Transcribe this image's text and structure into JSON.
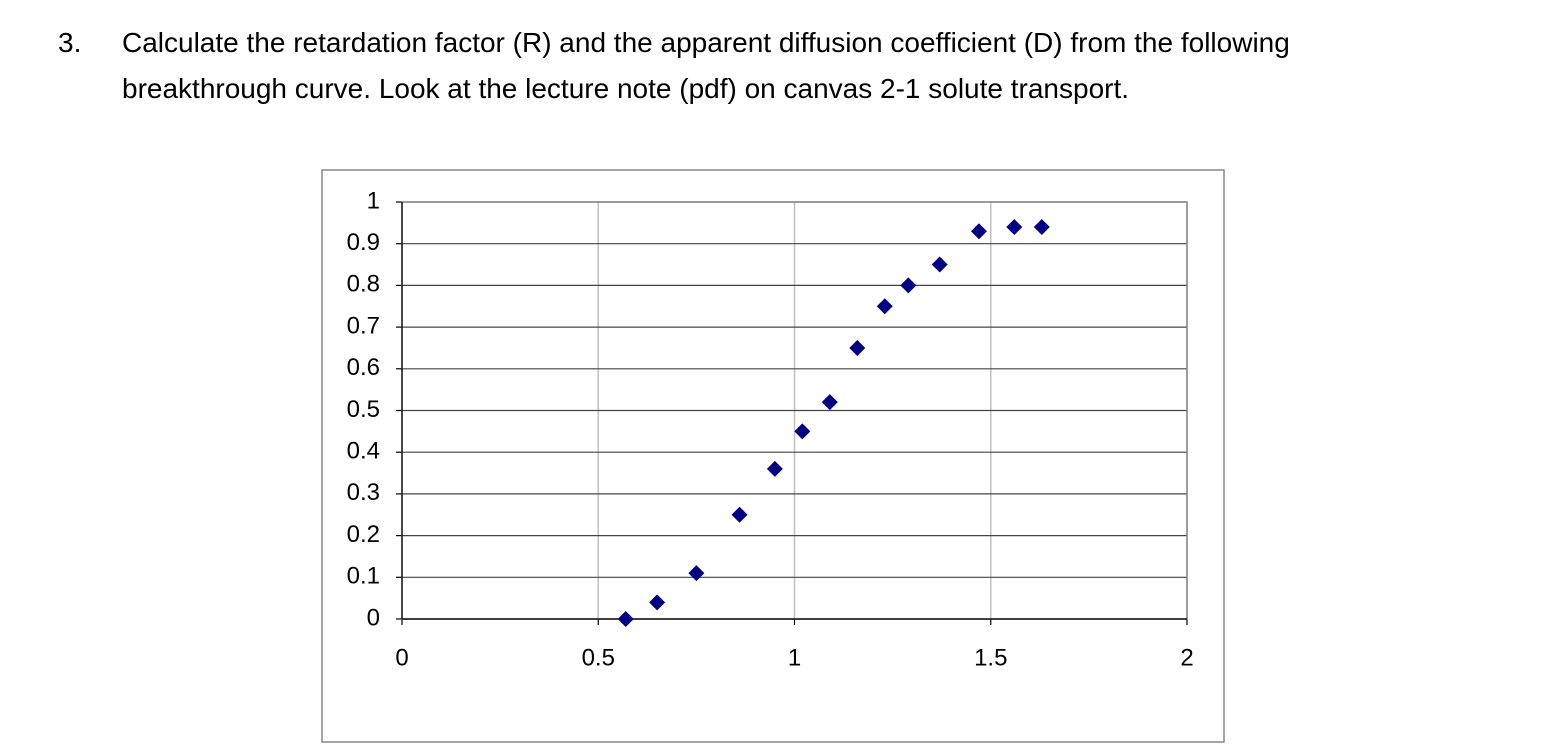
{
  "question": {
    "number": "3.",
    "lines": [
      "Calculate the retardation factor (R) and the apparent diffusion coefficient (D) from the following",
      "breakthrough curve. Look at the lecture note (pdf)  on canvas 2-1 solute transport."
    ]
  },
  "chart_data": {
    "type": "scatter",
    "color": "#000080",
    "x": [
      0.57,
      0.65,
      0.75,
      0.86,
      0.95,
      1.02,
      1.09,
      1.16,
      1.23,
      1.29,
      1.37,
      1.47,
      1.56,
      1.63
    ],
    "values": [
      0,
      0.04,
      0.11,
      0.25,
      0.36,
      0.45,
      0.52,
      0.65,
      0.75,
      0.8,
      0.85,
      0.93,
      0.94,
      0.94
    ],
    "xlim": [
      0,
      2
    ],
    "xticks": [
      0,
      0.5,
      1,
      1.5,
      2
    ],
    "ylim": [
      0,
      1
    ],
    "yticks": [
      0,
      0.1,
      0.2,
      0.3,
      0.4,
      0.5,
      0.6,
      0.7,
      0.8,
      0.9,
      1
    ],
    "grid": true
  }
}
